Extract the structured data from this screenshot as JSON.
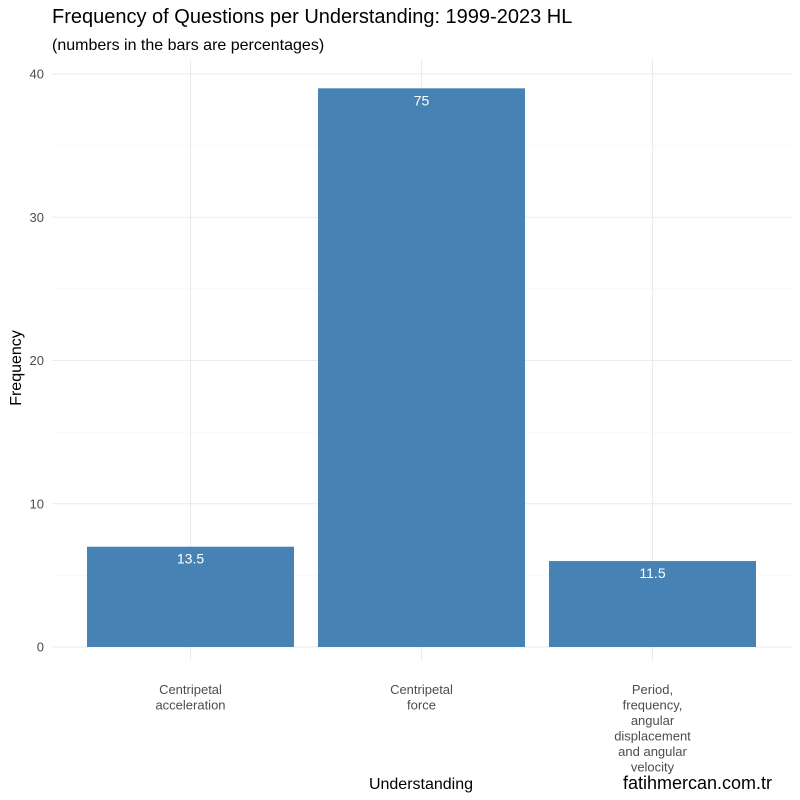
{
  "chart_data": {
    "type": "bar",
    "title": "Frequency of Questions per Understanding: 1999-2023 HL",
    "subtitle": "(numbers in the bars are percentages)",
    "xlabel": "Understanding",
    "ylabel": "Frequency",
    "categories": [
      "Centripetal acceleration",
      "Centripetal force",
      "Period, frequency, angular displacement and angular velocity"
    ],
    "category_label_lines": [
      [
        "Centripetal",
        "acceleration"
      ],
      [
        "Centripetal",
        "force"
      ],
      [
        "Period,",
        "frequency,",
        "angular",
        "displacement",
        "and angular",
        "velocity"
      ]
    ],
    "values": [
      7,
      39,
      6
    ],
    "bar_labels": [
      "13.5",
      "75",
      "11.5"
    ],
    "ylim": [
      0,
      40
    ],
    "yticks": [
      0,
      10,
      20,
      30,
      40
    ],
    "grid": true,
    "bar_color": "#4682b4"
  },
  "watermark": "fatihmercan.com.tr"
}
